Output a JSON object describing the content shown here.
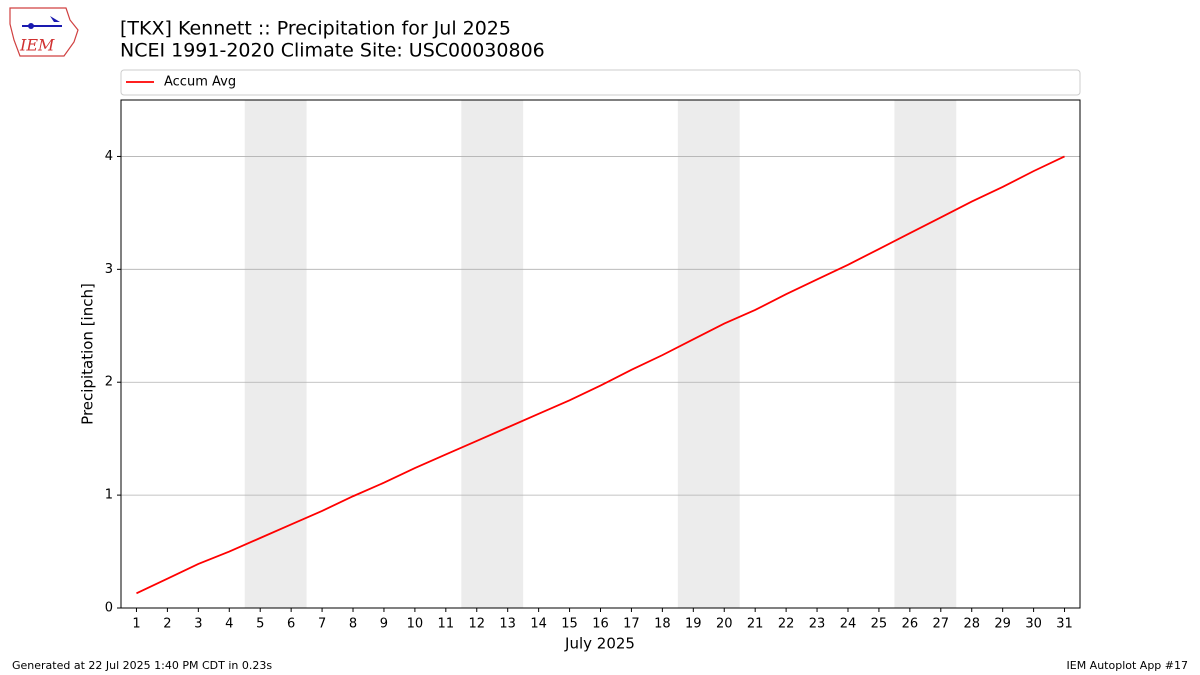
{
  "logo_text": "IEM",
  "chart_data": {
    "type": "line",
    "title": "[TKX] Kennett :: Precipitation for Jul 2025",
    "subtitle": "NCEI 1991-2020 Climate Site: USC00030806",
    "xlabel": "July 2025",
    "ylabel": "Precipitation [inch]",
    "x": [
      1,
      2,
      3,
      4,
      5,
      6,
      7,
      8,
      9,
      10,
      11,
      12,
      13,
      14,
      15,
      16,
      17,
      18,
      19,
      20,
      21,
      22,
      23,
      24,
      25,
      26,
      27,
      28,
      29,
      30,
      31
    ],
    "series": [
      {
        "name": "Accum Avg",
        "color": "#ff0000",
        "values": [
          0.13,
          0.26,
          0.39,
          0.5,
          0.62,
          0.74,
          0.86,
          0.99,
          1.11,
          1.24,
          1.36,
          1.48,
          1.6,
          1.72,
          1.84,
          1.97,
          2.11,
          2.24,
          2.38,
          2.52,
          2.64,
          2.78,
          2.91,
          3.04,
          3.18,
          3.32,
          3.46,
          3.6,
          3.73,
          3.87,
          4.0
        ]
      }
    ],
    "xlim": [
      0.5,
      31.5
    ],
    "ylim": [
      0,
      4.5
    ],
    "xticks": [
      1,
      2,
      3,
      4,
      5,
      6,
      7,
      8,
      9,
      10,
      11,
      12,
      13,
      14,
      15,
      16,
      17,
      18,
      19,
      20,
      21,
      22,
      23,
      24,
      25,
      26,
      27,
      28,
      29,
      30,
      31
    ],
    "yticks": [
      0,
      1,
      2,
      3,
      4
    ],
    "shaded_spans": [
      [
        4.5,
        6.5
      ],
      [
        11.5,
        13.5
      ],
      [
        18.5,
        20.5
      ],
      [
        25.5,
        27.5
      ]
    ],
    "shade_color": "#ececec",
    "grid": "y",
    "legend": "top"
  },
  "footer": {
    "left": "Generated at 22 Jul 2025 1:40 PM CDT in 0.23s",
    "right": "IEM Autoplot App #17"
  }
}
